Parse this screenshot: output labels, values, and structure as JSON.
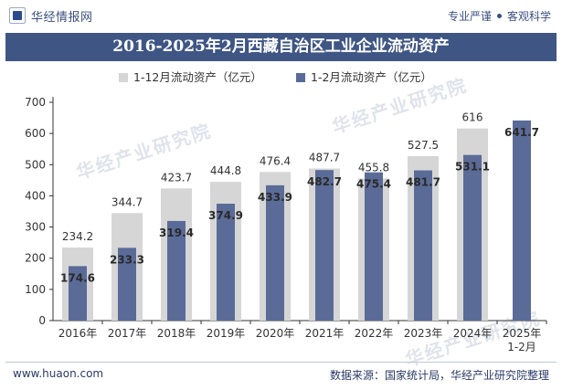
{
  "header": {
    "brand": "华经情报网",
    "tagline_left": "专业严谨",
    "tagline_right": "客观科学"
  },
  "footer": {
    "website": "www.huaon.com",
    "source": "数据来源：国家统计局，华经产业研究院整理"
  },
  "watermark": "华经产业研究院",
  "colors": {
    "title_bg": "#3f5685",
    "series_full": "#d6d6d6",
    "series_part": "#5a6b98"
  },
  "chart_data": {
    "type": "bar",
    "title": "2016-2025年2月西藏自治区工业企业流动资产",
    "categories": [
      "2016年",
      "2017年",
      "2018年",
      "2019年",
      "2020年",
      "2021年",
      "2022年",
      "2023年",
      "2024年",
      "2025年\n1-2月"
    ],
    "series": [
      {
        "name": "1-12月流动资产（亿元）",
        "values": [
          234.2,
          344.7,
          423.7,
          444.8,
          476.4,
          487.7,
          455.8,
          527.5,
          616,
          null
        ]
      },
      {
        "name": "1-2月流动资产（亿元）",
        "values": [
          174.6,
          233.3,
          319.4,
          374.9,
          433.9,
          482.7,
          475.4,
          481.7,
          531.1,
          641.7
        ]
      }
    ],
    "ylim": [
      0,
      700
    ],
    "yticks": [
      0,
      100,
      200,
      300,
      400,
      500,
      600,
      700
    ],
    "xlabel": "",
    "ylabel": "",
    "grid": false,
    "legend": "top-left"
  }
}
